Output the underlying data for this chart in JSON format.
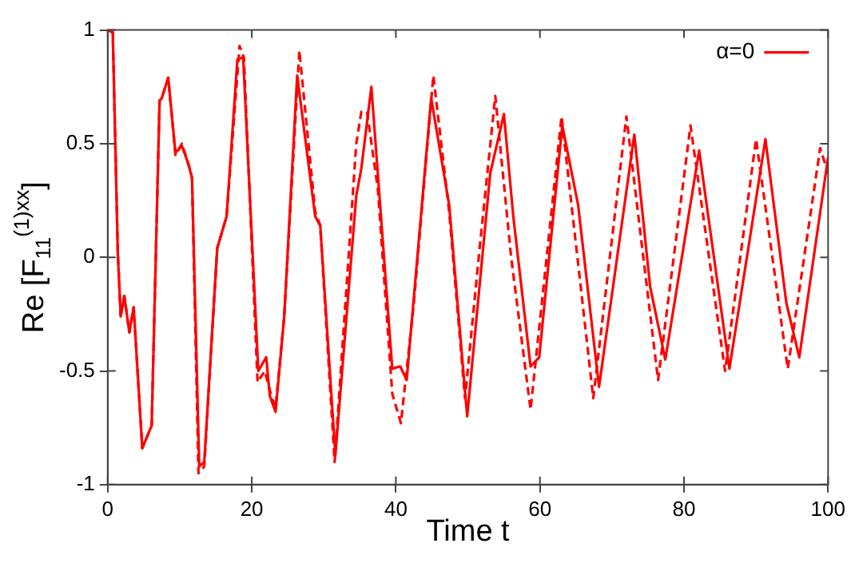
{
  "chart_data": {
    "type": "line",
    "xlabel": "Time t",
    "ylabel": "Re [F$_{11}$$^{(1)xx}$]",
    "xlim": [
      0,
      100
    ],
    "xticks": [
      0,
      20,
      40,
      60,
      80,
      100
    ],
    "ylim": [
      -1,
      1
    ],
    "yticks": [
      -1,
      -0.5,
      0,
      0.5,
      1
    ],
    "grid": false,
    "legend": "top right",
    "marker": "none",
    "series": [
      {
        "name": "α=0",
        "color": "#ff0000",
        "line_style": "solid",
        "x": [
          0,
          0.7,
          1.4,
          1.8,
          2.3,
          3,
          3.6,
          4.8,
          6.1,
          7.2,
          7.5,
          8.4,
          9.4,
          10.3,
          11.2,
          11.7,
          12.7,
          13.4,
          15.2,
          16.5,
          18,
          18.8,
          20.9,
          22,
          22.5,
          23.3,
          24.5,
          26.3,
          28.8,
          29.5,
          31.6,
          34.5,
          35.2,
          36.6,
          39.5,
          40.6,
          41.5,
          44.9,
          47.4,
          49.9,
          53.1,
          55,
          56.3,
          58.7,
          59.9,
          63.1,
          65.3,
          68.2,
          73.1,
          75.3,
          77.4,
          82.1,
          86.3,
          91.3,
          94.2,
          96,
          100
        ],
        "values": [
          1,
          0.99,
          0.02,
          -0.26,
          -0.17,
          -0.33,
          -0.22,
          -0.84,
          -0.74,
          0.69,
          0.7,
          0.79,
          0.46,
          0.49,
          0.41,
          0.35,
          -0.92,
          -0.9,
          0.04,
          0.18,
          0.87,
          0.88,
          -0.5,
          -0.44,
          -0.61,
          -0.68,
          -0.26,
          0.8,
          0.18,
          0.14,
          -0.87,
          0.27,
          0.39,
          0.75,
          -0.49,
          -0.48,
          -0.54,
          0.7,
          0.23,
          -0.7,
          0.37,
          0.63,
          0.18,
          -0.48,
          -0.44,
          0.58,
          0.23,
          -0.57,
          0.54,
          -0.13,
          -0.45,
          0.47,
          -0.49,
          0.52,
          -0.2,
          -0.44,
          0.44
        ]
      },
      {
        "color": "#ff0000",
        "line_style": "dashed",
        "x": [
          0,
          0.7,
          1.4,
          1.8,
          2.3,
          3,
          3.6,
          4.8,
          6.1,
          7.2,
          7.5,
          8.4,
          9.4,
          10.3,
          11.2,
          11.7,
          12.6,
          13.4,
          15.2,
          16.5,
          18.3,
          18.9,
          20.8,
          21.8,
          22.8,
          23.3,
          24.5,
          26.6,
          28.8,
          29.5,
          31.5,
          34.5,
          35.2,
          36,
          37.5,
          39.5,
          40.7,
          42.5,
          45.2,
          47.4,
          49.6,
          51.5,
          53.8,
          56,
          58.7,
          63,
          67.4,
          72,
          76.4,
          80.9,
          85.7,
          90,
          94.4,
          98.9,
          100
        ],
        "values": [
          1,
          0.99,
          0.02,
          -0.26,
          -0.17,
          -0.33,
          -0.22,
          -0.84,
          -0.74,
          0.69,
          0.7,
          0.79,
          0.45,
          0.5,
          0.41,
          0.35,
          -0.95,
          -0.92,
          0.04,
          0.18,
          0.93,
          0.88,
          -0.55,
          -0.5,
          -0.62,
          -0.66,
          -0.26,
          0.91,
          0.2,
          0.14,
          -0.9,
          0.5,
          0.64,
          0.64,
          0.3,
          -0.6,
          -0.73,
          -0.2,
          0.8,
          0.2,
          -0.62,
          0,
          0.71,
          0,
          -0.67,
          0.62,
          -0.62,
          0.62,
          -0.54,
          0.58,
          -0.5,
          0.52,
          -0.49,
          0.48,
          0.37
        ]
      }
    ]
  }
}
